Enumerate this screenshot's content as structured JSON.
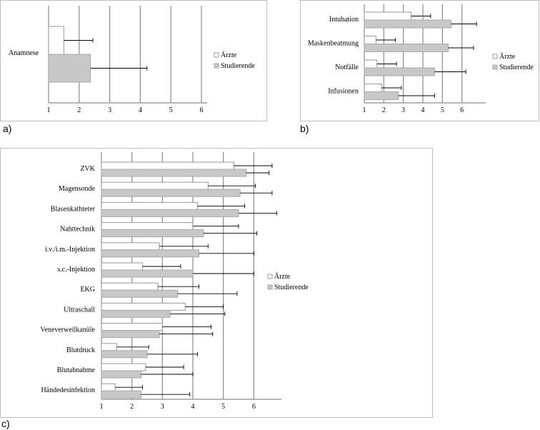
{
  "panels": [
    {
      "letter": "a)",
      "legend": [
        "Ärzte",
        "Studierende"
      ],
      "chart_data": {
        "type": "bar",
        "orientation": "horizontal",
        "categories": [
          "Anamnese"
        ],
        "series": [
          {
            "name": "Ärzte",
            "values": [
              1.5
            ],
            "error_high": [
              2.45
            ]
          },
          {
            "name": "Studierende",
            "values": [
              2.37
            ],
            "error_high": [
              4.22
            ]
          }
        ],
        "xlim": [
          1,
          6
        ],
        "xticks": [
          "1",
          "2",
          "3",
          "4",
          "5",
          "6"
        ],
        "grid": true,
        "legend_position": "right"
      }
    },
    {
      "letter": "b)",
      "legend": [
        "Ärzte",
        "Studierende"
      ],
      "chart_data": {
        "type": "bar",
        "orientation": "horizontal",
        "categories": [
          "Intubation",
          "Maskenbeatmung",
          "Notfälle",
          "Infusionen"
        ],
        "series": [
          {
            "name": "Ärzte",
            "values": [
              3.4,
              1.6,
              1.65,
              1.9
            ],
            "error_high": [
              4.4,
              2.6,
              2.65,
              2.9
            ]
          },
          {
            "name": "Studierende",
            "values": [
              5.45,
              5.3,
              4.6,
              2.75
            ],
            "error_high": [
              6.75,
              6.6,
              6.2,
              4.6
            ]
          }
        ],
        "xlim": [
          1,
          7
        ],
        "xticks": [
          "1",
          "2",
          "3",
          "4",
          "5",
          "6"
        ],
        "grid": true,
        "legend_position": "right"
      }
    },
    {
      "letter": "c)",
      "legend": [
        "Ärzte",
        "Studierende"
      ],
      "chart_data": {
        "type": "bar",
        "orientation": "horizontal",
        "categories": [
          "ZVK",
          "Magensonde",
          "Blasenkathteter",
          "Nahttechnik",
          "i.v./i.m.-Injektion",
          "s.c.-Injektion",
          "EKG",
          "Ultraschall",
          "Veneverweilkanüle",
          "Blutdruck",
          "Blutabnahme",
          "Händedesinfektion"
        ],
        "series": [
          {
            "name": "Ärzte",
            "values": [
              5.35,
              4.5,
              4.15,
              4.0,
              2.9,
              2.35,
              2.85,
              3.75,
              3.0,
              1.5,
              2.45,
              1.45
            ],
            "error_high": [
              6.6,
              6.05,
              5.7,
              5.5,
              4.5,
              3.6,
              4.2,
              5.0,
              4.6,
              2.55,
              3.7,
              2.35
            ]
          },
          {
            "name": "Studierende",
            "values": [
              5.75,
              5.55,
              5.5,
              4.35,
              4.2,
              4.0,
              3.5,
              3.25,
              2.9,
              2.5,
              2.3,
              2.3
            ],
            "error_high": [
              6.5,
              6.6,
              6.75,
              6.1,
              6.0,
              6.0,
              5.45,
              5.05,
              4.65,
              4.15,
              4.0,
              3.9
            ]
          }
        ],
        "xlim": [
          1,
          7
        ],
        "xticks": [
          "1",
          "2",
          "3",
          "4",
          "5",
          "6"
        ],
        "grid": true,
        "legend_position": "right"
      }
    }
  ]
}
